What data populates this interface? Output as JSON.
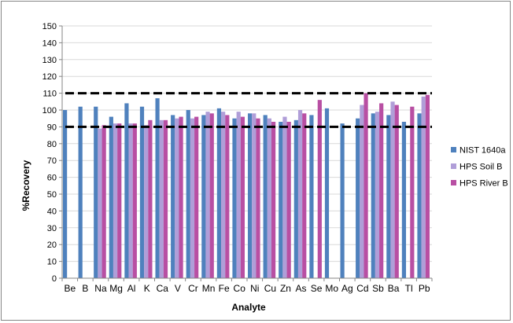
{
  "chart_data": {
    "type": "bar",
    "xlabel": "Analyte",
    "ylabel": "%Recovery",
    "ylim": [
      0,
      150
    ],
    "ytick_step": 10,
    "grid": true,
    "legend_position": "right",
    "reference_lines": [
      90,
      110
    ],
    "categories": [
      "Be",
      "B",
      "Na",
      "Mg",
      "Al",
      "K",
      "Ca",
      "V",
      "Cr",
      "Mn",
      "Fe",
      "Co",
      "Ni",
      "Cu",
      "Zn",
      "As",
      "Se",
      "Mo",
      "Ag",
      "Cd",
      "Sb",
      "Ba",
      "Tl",
      "Pb"
    ],
    "series": [
      {
        "name": "NIST 1640a",
        "color": "#4f81bd",
        "values": [
          100,
          102,
          102,
          96,
          104,
          102,
          107,
          97,
          100,
          97,
          101,
          95,
          98,
          97,
          93,
          94,
          97,
          101,
          92,
          95,
          98,
          97,
          93,
          98
        ]
      },
      {
        "name": "HPS Soil B",
        "color": "#b09ed8",
        "values": [
          null,
          null,
          89,
          92,
          92,
          91,
          94,
          95,
          95,
          99,
          99,
          99,
          98,
          95,
          96,
          100,
          null,
          null,
          null,
          103,
          99,
          105,
          null,
          108
        ]
      },
      {
        "name": "HPS River B",
        "color": "#b84fa3",
        "values": [
          null,
          null,
          91,
          92,
          92,
          94,
          94,
          96,
          96,
          98,
          97,
          96,
          95,
          93,
          93,
          98,
          106,
          null,
          null,
          110,
          104,
          103,
          102,
          109
        ]
      }
    ]
  }
}
